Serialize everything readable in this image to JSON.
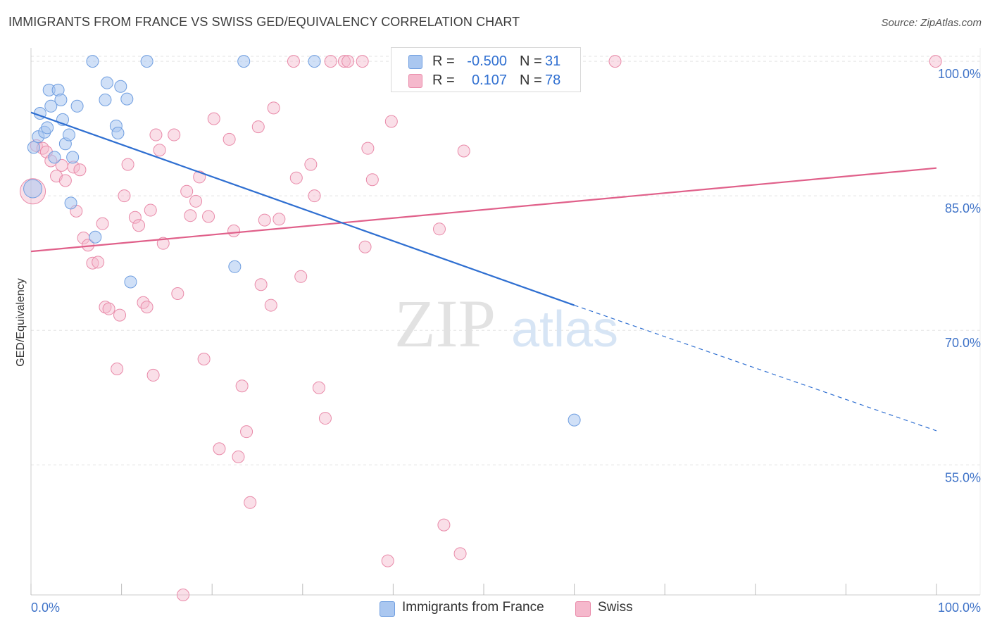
{
  "title": "IMMIGRANTS FROM FRANCE VS SWISS GED/EQUIVALENCY CORRELATION CHART",
  "source": "Source: ZipAtlas.com",
  "watermark": {
    "zip": "ZIP",
    "atlas": "atlas"
  },
  "legend": {
    "series1": {
      "r_label": "R =",
      "r_value": "-0.500",
      "n_label": "N =",
      "n_value": "31"
    },
    "series2": {
      "r_label": "R =",
      "r_value": "0.107",
      "n_label": "N =",
      "n_value": "78"
    }
  },
  "bottom_legend": {
    "series1": "Immigrants from France",
    "series2": "Swiss"
  },
  "colors": {
    "blue_fill": "#aac7f0",
    "blue_stroke": "#6f9ee0",
    "blue_line": "#2f6fd1",
    "pink_fill": "#f5b8cc",
    "pink_stroke": "#e98aa9",
    "pink_line": "#e0608a",
    "tick_label": "#3f73c8",
    "grid": "#e3e3e3"
  },
  "chart_data": {
    "type": "scatter",
    "title": "IMMIGRANTS FROM FRANCE VS SWISS GED/EQUIVALENCY CORRELATION CHART",
    "xlabel": "",
    "ylabel": "GED/Equivalency",
    "xlim": [
      0,
      100
    ],
    "ylim": [
      40.5,
      101.5
    ],
    "x_tick_labels": [
      "0.0%",
      "100.0%"
    ],
    "y_ticks": [
      100,
      85,
      70,
      55
    ],
    "y_tick_labels": [
      "100.0%",
      "85.0%",
      "70.0%",
      "55.0%"
    ],
    "grid": true,
    "legend_position": "top-center",
    "series": [
      {
        "name": "Immigrants from France",
        "r": -0.5,
        "n": 31,
        "trend": {
          "x0": 0,
          "y0": 94.3,
          "x1": 60,
          "y1": 72.8,
          "dashed_to_x": 100,
          "dashed_to_y": 58.8
        },
        "points": [
          [
            0.2,
            85.8
          ],
          [
            0.3,
            90.4
          ],
          [
            0.8,
            91.6
          ],
          [
            1.0,
            94.2
          ],
          [
            1.5,
            92.1
          ],
          [
            1.8,
            92.6
          ],
          [
            2.0,
            96.8
          ],
          [
            2.2,
            95.0
          ],
          [
            2.6,
            89.3
          ],
          [
            3.0,
            96.8
          ],
          [
            3.3,
            95.7
          ],
          [
            3.5,
            93.5
          ],
          [
            3.8,
            90.8
          ],
          [
            4.2,
            91.8
          ],
          [
            4.4,
            84.2
          ],
          [
            4.6,
            89.3
          ],
          [
            5.1,
            95.0
          ],
          [
            7.1,
            80.4
          ],
          [
            6.8,
            100.0
          ],
          [
            8.2,
            95.7
          ],
          [
            8.4,
            97.6
          ],
          [
            9.4,
            92.8
          ],
          [
            9.6,
            92.0
          ],
          [
            9.9,
            97.2
          ],
          [
            10.6,
            95.8
          ],
          [
            11.0,
            75.4
          ],
          [
            12.8,
            100.0
          ],
          [
            22.5,
            77.1
          ],
          [
            23.5,
            100.0
          ],
          [
            31.3,
            100.0
          ],
          [
            60.0,
            60.0
          ]
        ]
      },
      {
        "name": "Swiss",
        "r": 0.107,
        "n": 78,
        "trend": {
          "x0": 0,
          "y0": 78.8,
          "x1": 100,
          "y1": 88.1
        },
        "points": [
          [
            0.2,
            85.5
          ],
          [
            0.6,
            90.6
          ],
          [
            1.3,
            90.3
          ],
          [
            1.7,
            89.9
          ],
          [
            2.2,
            88.9
          ],
          [
            2.8,
            87.2
          ],
          [
            3.4,
            88.4
          ],
          [
            3.8,
            86.7
          ],
          [
            4.7,
            88.2
          ],
          [
            5.0,
            83.3
          ],
          [
            5.4,
            87.9
          ],
          [
            5.8,
            80.3
          ],
          [
            6.3,
            79.5
          ],
          [
            6.8,
            77.5
          ],
          [
            7.4,
            77.6
          ],
          [
            7.9,
            81.9
          ],
          [
            8.2,
            72.6
          ],
          [
            8.6,
            72.4
          ],
          [
            9.5,
            65.7
          ],
          [
            9.8,
            71.7
          ],
          [
            10.3,
            85.0
          ],
          [
            10.7,
            88.5
          ],
          [
            11.5,
            82.6
          ],
          [
            11.9,
            81.7
          ],
          [
            12.4,
            73.1
          ],
          [
            12.8,
            72.6
          ],
          [
            13.2,
            83.4
          ],
          [
            13.8,
            91.8
          ],
          [
            14.2,
            90.1
          ],
          [
            14.6,
            79.7
          ],
          [
            15.8,
            91.8
          ],
          [
            16.2,
            74.1
          ],
          [
            16.8,
            40.5
          ],
          [
            17.2,
            85.5
          ],
          [
            17.6,
            82.8
          ],
          [
            18.2,
            84.4
          ],
          [
            18.6,
            87.1
          ],
          [
            19.1,
            66.8
          ],
          [
            19.6,
            82.7
          ],
          [
            20.2,
            93.6
          ],
          [
            20.8,
            56.8
          ],
          [
            21.9,
            91.3
          ],
          [
            22.4,
            81.1
          ],
          [
            22.9,
            55.9
          ],
          [
            23.3,
            63.8
          ],
          [
            23.8,
            58.7
          ],
          [
            24.2,
            50.8
          ],
          [
            25.1,
            92.7
          ],
          [
            25.4,
            75.1
          ],
          [
            25.8,
            82.3
          ],
          [
            26.5,
            72.8
          ],
          [
            26.8,
            94.8
          ],
          [
            27.4,
            82.4
          ],
          [
            29.3,
            87.0
          ],
          [
            29.8,
            76.0
          ],
          [
            30.9,
            88.5
          ],
          [
            31.3,
            85.0
          ],
          [
            31.8,
            63.6
          ],
          [
            32.5,
            60.2
          ],
          [
            33.1,
            100.0
          ],
          [
            34.6,
            100.0
          ],
          [
            35.0,
            100.0
          ],
          [
            36.6,
            100.0
          ],
          [
            36.9,
            79.3
          ],
          [
            37.2,
            90.3
          ],
          [
            37.7,
            86.8
          ],
          [
            39.4,
            44.3
          ],
          [
            39.8,
            93.3
          ],
          [
            45.1,
            81.3
          ],
          [
            45.6,
            48.3
          ],
          [
            47.4,
            45.1
          ],
          [
            47.8,
            90.0
          ],
          [
            53.0,
            100.0
          ],
          [
            64.5,
            100.0
          ],
          [
            99.9,
            100.0
          ],
          [
            13.5,
            65.0
          ],
          [
            29.0,
            100.0
          ],
          [
            40.5,
            100.0
          ]
        ]
      }
    ]
  }
}
